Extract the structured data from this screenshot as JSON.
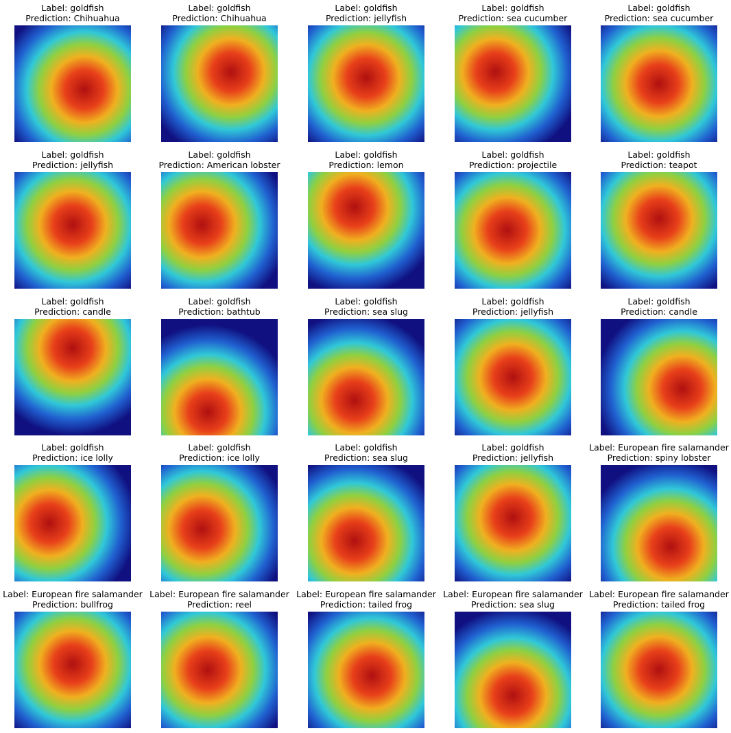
{
  "grid": {
    "items": [
      {
        "label": "Label: goldfish",
        "prediction": "Prediction: Chihuahua"
      },
      {
        "label": "Label: goldfish",
        "prediction": "Prediction: Chihuahua"
      },
      {
        "label": "Label: goldfish",
        "prediction": "Prediction: jellyfish"
      },
      {
        "label": "Label: goldfish",
        "prediction": "Prediction: sea cucumber"
      },
      {
        "label": "Label: goldfish",
        "prediction": "Prediction: sea cucumber"
      },
      {
        "label": "Label: goldfish",
        "prediction": "Prediction: jellyfish"
      },
      {
        "label": "Label: goldfish",
        "prediction": "Prediction: American lobster"
      },
      {
        "label": "Label: goldfish",
        "prediction": "Prediction: lemon"
      },
      {
        "label": "Label: goldfish",
        "prediction": "Prediction: projectile"
      },
      {
        "label": "Label: goldfish",
        "prediction": "Prediction: teapot"
      },
      {
        "label": "Label: goldfish",
        "prediction": "Prediction: candle"
      },
      {
        "label": "Label: goldfish",
        "prediction": "Prediction: bathtub"
      },
      {
        "label": "Label: goldfish",
        "prediction": "Prediction: sea slug"
      },
      {
        "label": "Label: goldfish",
        "prediction": "Prediction: jellyfish"
      },
      {
        "label": "Label: goldfish",
        "prediction": "Prediction: candle"
      },
      {
        "label": "Label: goldfish",
        "prediction": "Prediction: ice lolly"
      },
      {
        "label": "Label: goldfish",
        "prediction": "Prediction: ice lolly"
      },
      {
        "label": "Label: goldfish",
        "prediction": "Prediction: sea slug"
      },
      {
        "label": "Label: goldfish",
        "prediction": "Prediction: jellyfish"
      },
      {
        "label": "Label: European fire salamander",
        "prediction": "Prediction: spiny lobster"
      },
      {
        "label": "Label: European fire salamander",
        "prediction": "Prediction: bullfrog"
      },
      {
        "label": "Label: European fire salamander",
        "prediction": "Prediction: reel"
      },
      {
        "label": "Label: European fire salamander",
        "prediction": "Prediction: tailed frog"
      },
      {
        "label": "Label: European fire salamander",
        "prediction": "Prediction: sea slug"
      },
      {
        "label": "Label: European fire salamander",
        "prediction": "Prediction: tailed frog"
      }
    ]
  }
}
